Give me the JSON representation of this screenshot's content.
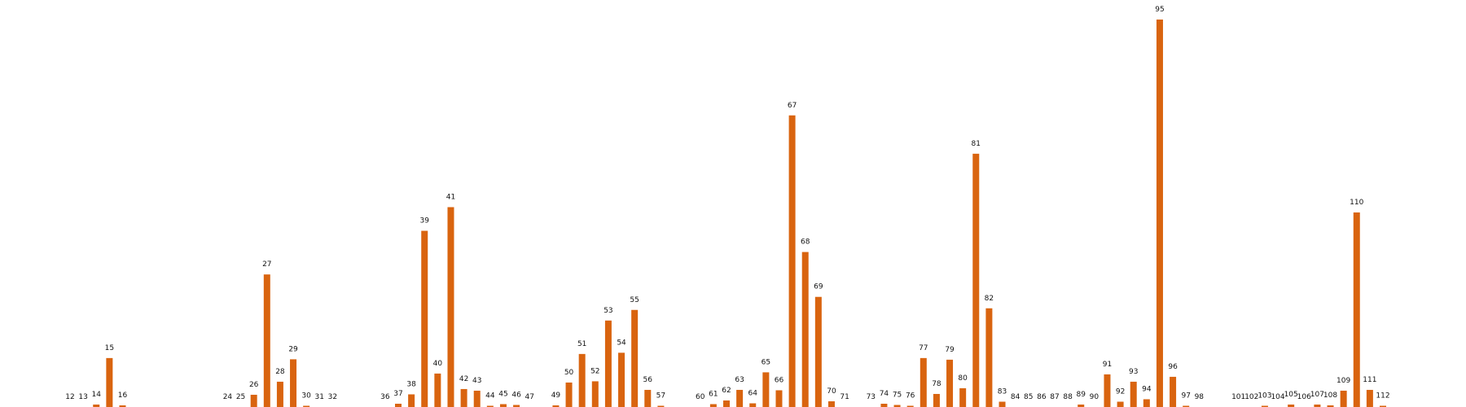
{
  "chart_data": {
    "type": "bar",
    "title": "",
    "xlabel": "",
    "ylabel": "",
    "color": "#d9640f",
    "ylim": [
      0,
      95
    ],
    "grid": false,
    "legend": "none",
    "categories": [
      "12",
      "13",
      "14",
      "15",
      "16",
      "24",
      "25",
      "26",
      "27",
      "28",
      "29",
      "30",
      "31",
      "32",
      "36",
      "37",
      "38",
      "39",
      "40",
      "41",
      "42",
      "43",
      "44",
      "45",
      "46",
      "47",
      "49",
      "50",
      "51",
      "52",
      "53",
      "54",
      "55",
      "56",
      "57",
      "60",
      "61",
      "62",
      "63",
      "64",
      "65",
      "66",
      "67",
      "68",
      "69",
      "70",
      "71",
      "73",
      "74",
      "75",
      "76",
      "77",
      "78",
      "79",
      "80",
      "81",
      "82",
      "83",
      "84",
      "85",
      "86",
      "87",
      "88",
      "89",
      "90",
      "91",
      "92",
      "93",
      "94",
      "95",
      "96",
      "97",
      "98",
      "101",
      "102",
      "103",
      "104",
      "105",
      "106",
      "107",
      "108",
      "109",
      "110",
      "111",
      "112"
    ],
    "values": [
      0,
      0,
      0.6,
      12,
      0.4,
      0,
      0,
      3,
      32.5,
      6.2,
      11.7,
      0.3,
      0,
      0,
      0,
      0.8,
      3.1,
      43.2,
      8.2,
      49,
      4.4,
      4,
      0.3,
      0.7,
      0.5,
      0,
      0.4,
      6,
      13,
      6.3,
      21.2,
      13.3,
      23.8,
      4.2,
      0.3,
      0,
      0.7,
      1.6,
      4.2,
      0.9,
      8.5,
      4.1,
      71.5,
      38,
      27,
      1.4,
      0,
      0,
      0.8,
      0.5,
      0.3,
      12,
      3.2,
      11.6,
      4.6,
      62.1,
      24.2,
      1.3,
      0,
      0,
      0,
      0,
      0,
      0.6,
      0,
      8,
      1.3,
      6.2,
      1.9,
      95,
      7.4,
      0.3,
      0,
      0,
      0,
      0.3,
      0,
      0.6,
      0,
      0.6,
      0.4,
      4,
      47.7,
      4.2,
      0.3
    ]
  }
}
